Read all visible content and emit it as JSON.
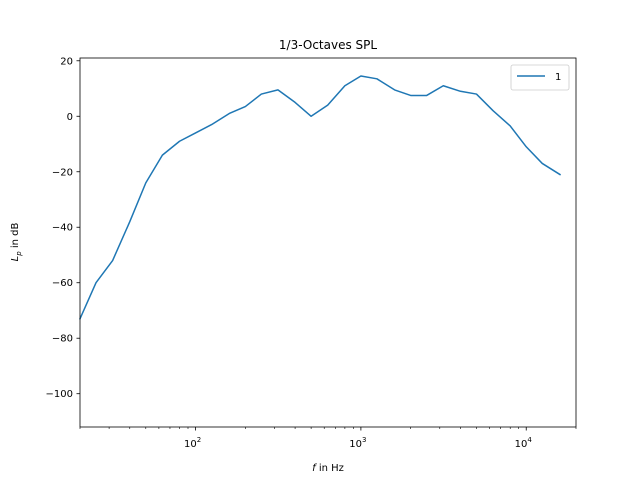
{
  "chart_data": {
    "type": "line",
    "title": "1/3-Octaves SPL",
    "xlabel": {
      "var": "f",
      "rest": " in Hz"
    },
    "ylabel": {
      "var": "L",
      "sub": "p",
      "rest": " in dB"
    },
    "xscale": "log",
    "xlim": [
      20,
      20000
    ],
    "ylim": [
      -112,
      21
    ],
    "yticks": [
      20,
      0,
      -20,
      -40,
      -60,
      -80,
      -100
    ],
    "ytick_labels": [
      "20",
      "0",
      "−20",
      "−40",
      "−60",
      "−80",
      "−100"
    ],
    "xticks": [
      {
        "value": 100,
        "base": "10",
        "exp": "2"
      },
      {
        "value": 1000,
        "base": "10",
        "exp": "3"
      },
      {
        "value": 10000,
        "base": "10",
        "exp": "4"
      }
    ],
    "grid": false,
    "legend_position": "top-right",
    "series": [
      {
        "name": "1",
        "color": "#1f77b4",
        "x": [
          20,
          25,
          31.5,
          40,
          50,
          63,
          80,
          100,
          125,
          160,
          200,
          250,
          315,
          400,
          500,
          630,
          800,
          1000,
          1250,
          1600,
          2000,
          2500,
          3150,
          4000,
          5000,
          6300,
          8000,
          10000,
          12500,
          16000
        ],
        "y": [
          -73,
          -60,
          -52,
          -38,
          -24,
          -14,
          -9,
          -6,
          -3,
          1,
          3.5,
          8,
          9.5,
          5,
          0,
          4,
          11,
          14.5,
          13.5,
          9.5,
          7.5,
          7.5,
          11,
          9,
          8,
          2,
          -3.5,
          -11,
          -17,
          -21
        ]
      }
    ]
  }
}
